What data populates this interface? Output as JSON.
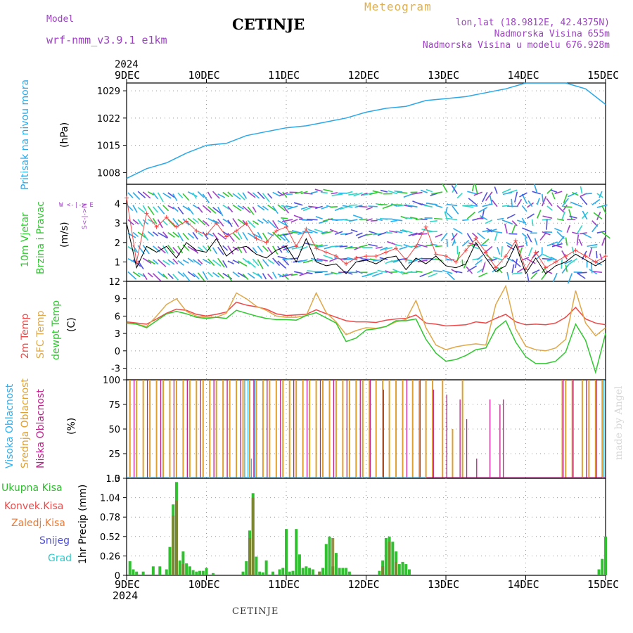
{
  "header": {
    "model_label": "Model",
    "model_name": "wrf-nmm_v3.9.1 e1km",
    "station": "CETINJE",
    "product": "Meteogram",
    "lonlat": "lon,lat (18.9812E, 42.4375N)",
    "altitude": "Nadmorska Visina 655m",
    "model_altitude": "Nadmorska Visina u modelu 676.928m",
    "footer_station": "CETINJE",
    "credit": "made by Angel"
  },
  "time_axis": {
    "year": "2024",
    "labels": [
      "9DEC",
      "10DEC",
      "11DEC",
      "12DEC",
      "13DEC",
      "14DEC",
      "15DEC"
    ]
  },
  "colors": {
    "pressure": "#2aa8e8",
    "temp2m": "#f04848",
    "sfc_temp": "#e0a848",
    "dewpoint": "#30c830",
    "wind_speed": "#000000",
    "wind_gust": "#f04848",
    "high_cloud": "#30b0f0",
    "mid_cloud": "#e0a030",
    "low_cloud": "#c0208c",
    "precip_total": "#30c030",
    "precip_conv": "#f04848",
    "precip_strat": "#f07830",
    "snow": "#5050e0",
    "hail": "#30c8c8"
  },
  "panels": {
    "pressure": {
      "label": "Pritisak na nivou mora",
      "unit": "(hPa)"
    },
    "wind": {
      "label1": "10m Vjetar",
      "label2": "Brzina i Pravac",
      "unit": "(m/s)",
      "compass": "W <-|-> E",
      "compass_ns": "S<-|->N"
    },
    "temp": {
      "label1": "2m Temp",
      "label2": "SFC Temp",
      "label3": "dewpt Temp",
      "unit": "(C)"
    },
    "cloud": {
      "label1": "Visoka Oblacnost",
      "label2": "Srednja Oblacnost",
      "label3": "Niska Oblacnost",
      "unit": "(%)"
    },
    "precip": {
      "label1": "Ukupna Kisa",
      "label2": "Konvek.Kisa",
      "label3": "Zaledj.Kisa",
      "label4": "Snijeg",
      "label5": "Grad",
      "unit": "1hr Precip (mm)"
    }
  },
  "chart_data": [
    {
      "type": "line",
      "title": "Pritisak na nivou mora",
      "ylabel": "(hPa)",
      "ylim": [
        1005,
        1031
      ],
      "yticks": [
        "1008",
        "1015",
        "1022",
        "1029"
      ],
      "x_hours": [
        0,
        6,
        12,
        18,
        24,
        30,
        36,
        42,
        48,
        54,
        60,
        66,
        72,
        78,
        84,
        90,
        96,
        102,
        108,
        114,
        120,
        126,
        132,
        138,
        144
      ],
      "series": [
        {
          "values": [
            1006.5,
            1009,
            1010.5,
            1013,
            1015,
            1015.5,
            1017.5,
            1018.5,
            1019.5,
            1020,
            1021,
            1022,
            1023.5,
            1024.5,
            1025,
            1026.5,
            1027,
            1027.5,
            1028.5,
            1029.5,
            1031,
            1031,
            1031,
            1029.5,
            1025.5
          ]
        }
      ]
    },
    {
      "type": "line",
      "title": "10m Vjetar Brzina i Pravac",
      "ylabel": "(m/s)",
      "ylim": [
        0,
        5
      ],
      "yticks": [
        "1",
        "2",
        "3",
        "4"
      ],
      "x_hours": [
        0,
        3,
        6,
        9,
        12,
        15,
        18,
        21,
        24,
        27,
        30,
        33,
        36,
        39,
        42,
        45,
        48,
        51,
        54,
        57,
        60,
        63,
        66,
        69,
        72,
        75,
        78,
        81,
        84,
        87,
        90,
        93,
        96,
        99,
        102,
        105,
        108,
        111,
        114,
        117,
        120,
        123,
        126,
        129,
        132,
        135,
        138,
        141,
        144
      ],
      "series": [
        {
          "values": [
            3.0,
            0.7,
            1.8,
            1.5,
            1.8,
            1.2,
            2.0,
            1.6,
            1.5,
            2.2,
            1.3,
            1.7,
            1.8,
            1.4,
            1.2,
            1.6,
            1.8,
            1.0,
            2.2,
            1.0,
            0.8,
            0.9,
            0.4,
            1.0,
            1.1,
            0.9,
            1.2,
            1.3,
            0.6,
            1.2,
            0.9,
            1.3,
            0.8,
            0.7,
            0.9,
            2.0,
            1.2,
            0.5,
            0.8,
            1.9,
            0.4,
            1.2,
            0.4,
            0.8,
            1.0,
            1.4,
            1.1,
            0.8,
            1.1
          ]
        },
        {
          "values": [
            4.3,
            1.0,
            3.5,
            2.8,
            3.3,
            2.8,
            3.1,
            2.6,
            2.4,
            3.0,
            2.3,
            2.6,
            3.0,
            2.2,
            2.0,
            2.6,
            2.8,
            1.8,
            2.7,
            1.7,
            1.5,
            1.3,
            0.9,
            1.2,
            1.3,
            1.3,
            1.5,
            1.7,
            1.1,
            1.8,
            2.8,
            1.4,
            1.3,
            1.0,
            1.6,
            2.2,
            1.5,
            0.7,
            1.3,
            2.1,
            0.6,
            1.5,
            0.7,
            1.0,
            1.3,
            1.6,
            1.3,
            1.0,
            1.3
          ]
        }
      ]
    },
    {
      "type": "line",
      "title": "2m Temp / SFC Temp / dewpt Temp",
      "ylabel": "(C)",
      "ylim": [
        -5,
        12
      ],
      "yticks": [
        "-3",
        "0",
        "3",
        "6",
        "9",
        "12"
      ],
      "x_hours": [
        0,
        3,
        6,
        9,
        12,
        15,
        18,
        21,
        24,
        27,
        30,
        33,
        36,
        39,
        42,
        45,
        48,
        51,
        54,
        57,
        60,
        63,
        66,
        69,
        72,
        75,
        78,
        81,
        84,
        87,
        90,
        93,
        96,
        99,
        102,
        105,
        108,
        111,
        114,
        117,
        120,
        123,
        126,
        129,
        132,
        135,
        138,
        141,
        144
      ],
      "series": [
        {
          "name": "2m Temp",
          "values": [
            5,
            4.8,
            4.6,
            5.5,
            6.5,
            7.2,
            7,
            6.3,
            6,
            6.3,
            6.7,
            8.4,
            7.9,
            7.6,
            7.2,
            6.4,
            6.1,
            6.2,
            6.3,
            7.1,
            6.4,
            5.8,
            5.2,
            5,
            5,
            4.9,
            5.3,
            5.5,
            5.6,
            6.2,
            4.8,
            4.6,
            4.3,
            4.4,
            4.5,
            5,
            4.8,
            5.6,
            6.3,
            5,
            4.5,
            4.6,
            4.5,
            4.8,
            5.8,
            7.5,
            5.5,
            4.8,
            4.5
          ]
        },
        {
          "name": "SFC Temp",
          "values": [
            4.8,
            4.6,
            4.2,
            6.0,
            8.0,
            9.0,
            6.8,
            6.0,
            5.8,
            5.8,
            6.5,
            10.0,
            9.0,
            7.7,
            7.0,
            6.0,
            5.8,
            5.8,
            6.1,
            10.0,
            6.6,
            5.0,
            2.8,
            3.5,
            4.0,
            3.9,
            4.2,
            5.0,
            5.4,
            8.7,
            4.0,
            1.0,
            0.2,
            0.7,
            1.0,
            1.2,
            1.0,
            8.0,
            11.2,
            3.8,
            0.8,
            0.2,
            0.0,
            0.5,
            2.0,
            10.4,
            4.8,
            2.6,
            4.0
          ]
        },
        {
          "name": "dewpt Temp",
          "values": [
            4.8,
            4.6,
            4.0,
            5.2,
            6.4,
            6.8,
            6.4,
            5.8,
            5.6,
            5.8,
            5.6,
            7.0,
            6.5,
            6.0,
            5.6,
            5.4,
            5.4,
            5.3,
            6.1,
            6.6,
            5.7,
            4.8,
            1.6,
            2.2,
            3.6,
            3.8,
            4.2,
            5.2,
            5.2,
            5.5,
            2.0,
            -0.4,
            -1.8,
            -1.5,
            -0.8,
            0.2,
            0.5,
            3.8,
            5.2,
            1.5,
            -1.0,
            -2.2,
            -2.2,
            -1.8,
            -0.2,
            4.6,
            1.8,
            -3.7,
            3.0
          ]
        }
      ]
    },
    {
      "type": "bar",
      "title": "Visoka / Srednja / Niska Oblacnost",
      "ylabel": "(%)",
      "ylim": [
        0,
        100
      ],
      "yticks": [
        "0",
        "25",
        "50",
        "75",
        "100"
      ],
      "series": [
        {
          "name": "Srednja Oblacnost",
          "x_hours": [
            1,
            3,
            5,
            7,
            9,
            11,
            13,
            15,
            17,
            19,
            21,
            23,
            25,
            27,
            29,
            31,
            33,
            35,
            37,
            39,
            41,
            43,
            45,
            47,
            49,
            51,
            53,
            55,
            57,
            59,
            61,
            63,
            65,
            67,
            69,
            71,
            73,
            75,
            77,
            79,
            81,
            83,
            86,
            88,
            90,
            92,
            95,
            98,
            101,
            131,
            132,
            134,
            137,
            139,
            141,
            143
          ],
          "values": [
            100,
            100,
            100,
            100,
            100,
            100,
            100,
            100,
            100,
            100,
            100,
            100,
            100,
            100,
            100,
            100,
            100,
            100,
            100,
            100,
            100,
            100,
            100,
            100,
            100,
            100,
            100,
            100,
            100,
            100,
            100,
            100,
            100,
            100,
            100,
            100,
            100,
            100,
            100,
            100,
            100,
            100,
            100,
            100,
            100,
            100,
            100,
            50,
            100,
            100,
            100,
            100,
            100,
            100,
            100,
            100
          ]
        },
        {
          "name": "Niska Oblacnost",
          "x_hours": [
            2,
            6,
            10,
            14,
            18,
            22,
            26,
            30,
            34,
            38,
            42,
            46,
            50,
            54,
            58,
            62,
            66,
            70,
            73,
            77,
            84,
            88,
            92,
            96,
            100,
            102,
            105,
            109,
            112,
            113,
            131,
            134,
            138,
            141
          ],
          "values": [
            100,
            100,
            100,
            100,
            100,
            100,
            100,
            100,
            100,
            100,
            100,
            100,
            100,
            100,
            100,
            100,
            100,
            100,
            100,
            90,
            100,
            100,
            90,
            85,
            80,
            60,
            20,
            80,
            75,
            80,
            100,
            100,
            100,
            100
          ]
        },
        {
          "name": "Visoka Oblacnost",
          "x_hours": [
            35,
            36,
            37,
            38,
            143
          ],
          "values": [
            100,
            100,
            20,
            100,
            100
          ]
        }
      ]
    },
    {
      "type": "bar",
      "title": "1hr Precip",
      "ylabel": "1hr Precip (mm)",
      "ylim": [
        0,
        1.3
      ],
      "yticks": [
        "0",
        "0.26",
        "0.52",
        "0.78",
        "1.04",
        "1.3"
      ],
      "series": [
        {
          "name": "Ukupna Kisa",
          "x_hours": [
            1,
            2,
            3,
            5,
            8,
            10,
            12,
            13,
            14,
            15,
            16,
            17,
            18,
            19,
            20,
            21,
            22,
            23,
            24,
            26,
            35,
            36,
            37,
            38,
            39,
            40,
            41,
            42,
            44,
            46,
            47,
            48,
            49,
            50,
            51,
            52,
            53,
            54,
            55,
            56,
            58,
            59,
            60,
            61,
            62,
            63,
            64,
            65,
            66,
            67,
            76,
            77,
            78,
            79,
            80,
            81,
            82,
            83,
            84,
            85,
            142,
            143,
            144
          ],
          "values": [
            0.19,
            0.08,
            0.05,
            0.05,
            0.12,
            0.12,
            0.08,
            0.38,
            0.95,
            1.25,
            0.2,
            0.32,
            0.16,
            0.12,
            0.07,
            0.05,
            0.06,
            0.06,
            0.1,
            0.03,
            0.05,
            0.19,
            0.6,
            1.1,
            0.25,
            0.05,
            0.04,
            0.2,
            0.05,
            0.08,
            0.1,
            0.62,
            0.05,
            0.06,
            0.62,
            0.28,
            0.1,
            0.12,
            0.1,
            0.08,
            0.05,
            0.1,
            0.42,
            0.52,
            0.12,
            0.3,
            0.1,
            0.1,
            0.1,
            0.05,
            0.06,
            0.2,
            0.5,
            0.52,
            0.45,
            0.32,
            0.15,
            0.18,
            0.15,
            0.08,
            0.08,
            0.22,
            0.52
          ]
        },
        {
          "name": "Konvek.Kisa",
          "x_hours": [
            14,
            15,
            17,
            37,
            38,
            58,
            62,
            77,
            79,
            81
          ],
          "values": [
            0.8,
            1.0,
            0.15,
            0.5,
            1.04,
            0.05,
            0.5,
            0.12,
            0.45,
            0.18
          ]
        }
      ]
    }
  ]
}
